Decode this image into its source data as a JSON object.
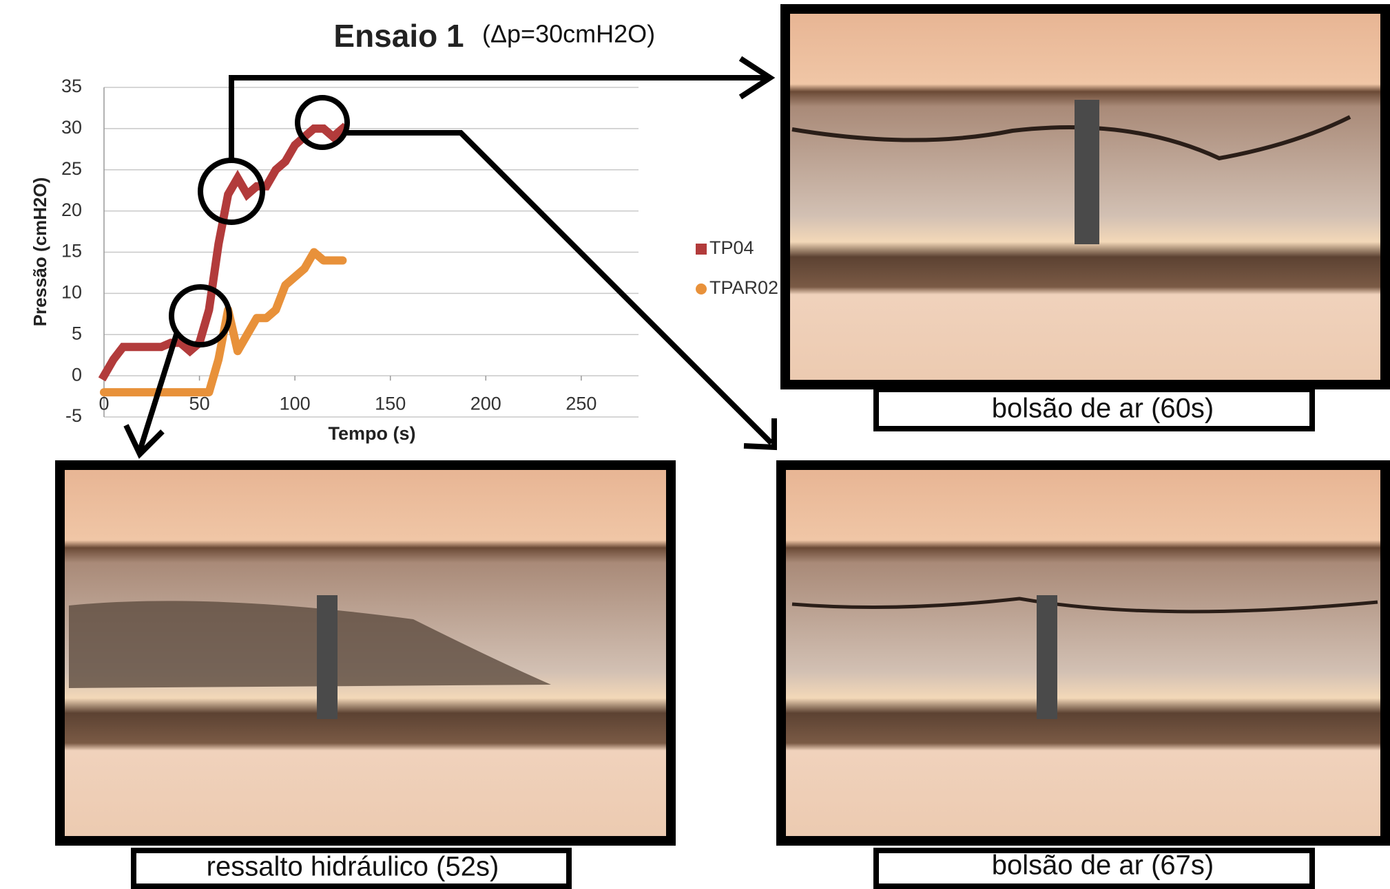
{
  "chart_data": {
    "type": "line",
    "title": "Ensaio 1",
    "subtitle": "(Δp=30cmH2O)",
    "x_label": "Tempo (s)",
    "y_label": "Pressão (cmH2O)",
    "x": [
      0,
      5,
      10,
      15,
      20,
      25,
      30,
      35,
      40,
      45,
      50,
      55,
      60,
      65,
      70,
      75,
      80,
      85,
      90,
      95,
      100,
      105,
      110,
      115,
      120,
      125
    ],
    "series": [
      {
        "name": "TP04",
        "color": "#b23b3b",
        "marker": "square",
        "values": [
          0,
          2,
          3.5,
          3.5,
          3.5,
          3.5,
          3.5,
          4,
          4,
          3,
          4,
          8,
          16,
          22,
          24,
          22,
          23,
          23,
          25,
          26,
          28,
          29,
          30,
          30,
          29,
          30
        ]
      },
      {
        "name": "TPAR02",
        "color": "#e8913a",
        "marker": "circle",
        "values": [
          -2,
          -2,
          -2,
          -2,
          -2,
          -2,
          -2,
          -2,
          -2,
          -2,
          -2,
          -2,
          2,
          8,
          3,
          5,
          7,
          7,
          8,
          11,
          12,
          13,
          15,
          14,
          14,
          14
        ]
      }
    ],
    "xlim": [
      0,
      280
    ],
    "xticks": [
      0,
      50,
      100,
      150,
      200,
      250
    ],
    "ylim": [
      -5,
      35
    ],
    "yticks": [
      -5,
      0,
      5,
      10,
      15,
      20,
      25,
      30,
      35
    ],
    "grid": true,
    "legend": "right"
  },
  "captions": [
    "bolsão de ar (60s)",
    "ressalto hidráulico (52s)",
    "bolsão de ar (67s)"
  ]
}
